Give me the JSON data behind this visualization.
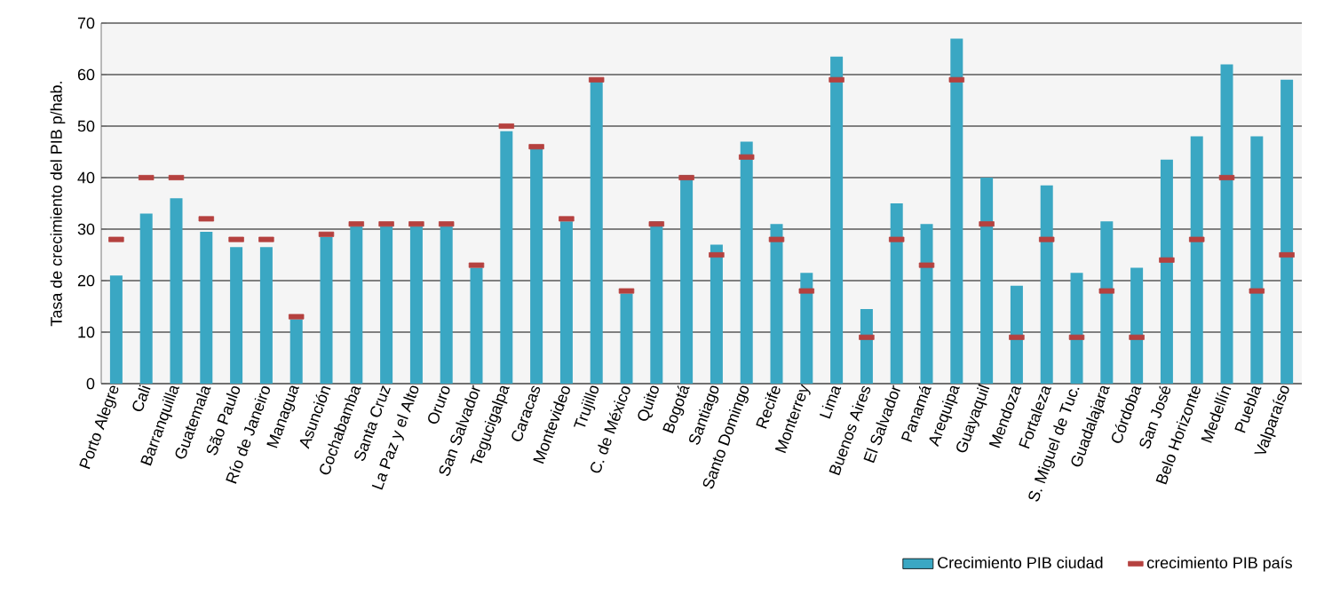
{
  "chart_data": {
    "type": "bar",
    "ylabel": "Tasa de crecimiento del PIB p/hab.",
    "categories": [
      "Porto Alegre",
      "Cali",
      "Barranquilla",
      "Guatemala",
      "São Paulo",
      "Río de Janeiro",
      "Managua",
      "Asunción",
      "Cochabamba",
      "Santa Cruz",
      "La Paz y el Alto",
      "Oruro",
      "San Salvador",
      "Tegucigalpa",
      "Caracas",
      "Montevideo",
      "Trujillo",
      "C. de México",
      "Quito",
      "Bogotá",
      "Santiago",
      "Santo Domingo",
      "Recife",
      "Monterrey",
      "Lima",
      "Buenos Aires",
      "El Salvador",
      "Panamá",
      "Arequipa",
      "Guayaquil",
      "Mendoza",
      "Fortaleza",
      "S. Miguel de Tuc.",
      "Guadalajara",
      "Córdoba",
      "San José",
      "Belo Horizonte",
      "Medellín",
      "Puebla",
      "Valparaíso"
    ],
    "series": [
      {
        "name": "Crecimiento PIB ciudad",
        "type": "bar",
        "color": "#3aa7c3",
        "values": [
          21,
          33,
          36,
          29.5,
          26.5,
          26.5,
          12.5,
          28.5,
          30.5,
          30.5,
          30.5,
          30.5,
          22.5,
          49,
          46,
          31.5,
          59,
          17.5,
          31.5,
          40.5,
          27,
          47,
          31,
          21.5,
          63.5,
          14.5,
          35,
          31,
          67,
          40,
          19,
          38.5,
          21.5,
          31.5,
          22.5,
          43.5,
          48,
          62,
          48,
          59
        ]
      },
      {
        "name": "crecimiento PIB país",
        "type": "scatter",
        "color": "#b5413f",
        "x": [
          "Porto Alegre",
          "Cali",
          "Barranquilla",
          "Guatemala",
          "São Paulo",
          "Río de Janeiro",
          "Managua",
          "Asunción",
          "Cochabamba",
          "Santa Cruz",
          "La Paz y el Alto",
          "Oruro",
          "San Salvador",
          "Tegucigalpa",
          "Caracas",
          "Montevideo",
          "Trujillo",
          "C. de México",
          "Quito",
          "Bogotá",
          "Santiago",
          "Santo Domingo",
          "Recife",
          "Monterrey",
          "Lima",
          "Buenos Aires",
          "El Salvador",
          "Panamá",
          "Arequipa",
          "Guayaquil",
          "Mendoza",
          "Fortaleza",
          "S. Miguel de Tuc.",
          "Guadalajara",
          "Córdoba",
          "San José",
          "Belo Horizonte",
          "Medellín",
          "Puebla",
          "Valparaíso"
        ],
        "values": [
          28,
          40,
          40,
          32,
          28,
          28,
          13,
          29,
          31,
          31,
          31,
          31,
          23,
          50,
          46,
          32,
          59,
          18,
          31,
          40,
          25,
          44,
          28,
          18,
          59,
          9,
          28,
          23,
          59,
          31,
          9,
          28,
          9,
          18,
          9,
          24,
          28,
          40,
          18,
          25
        ]
      }
    ],
    "ylim": [
      0,
      70
    ],
    "yticks": [
      0,
      10,
      20,
      30,
      40,
      50,
      60,
      70
    ],
    "grid": "y",
    "legend": "bottom right"
  }
}
